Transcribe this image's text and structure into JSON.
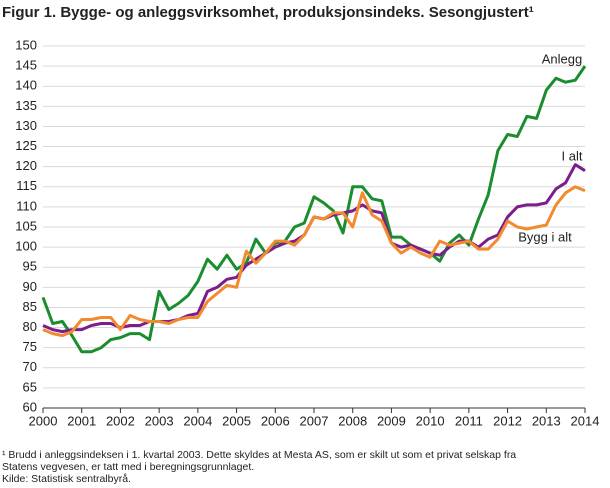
{
  "chart_data": {
    "type": "line",
    "title": "Figur 1. Bygge- og anleggsvirksomhet, produksjonsindeks. Sesongjustert¹",
    "x": [
      2000,
      2000.25,
      2000.5,
      2000.75,
      2001,
      2001.25,
      2001.5,
      2001.75,
      2002,
      2002.25,
      2002.5,
      2002.75,
      2003,
      2003.25,
      2003.5,
      2003.75,
      2004,
      2004.25,
      2004.5,
      2004.75,
      2005,
      2005.25,
      2005.5,
      2005.75,
      2006,
      2006.25,
      2006.5,
      2006.75,
      2007,
      2007.25,
      2007.5,
      2007.75,
      2008,
      2008.25,
      2008.5,
      2008.75,
      2009,
      2009.25,
      2009.5,
      2009.75,
      2010,
      2010.25,
      2010.5,
      2010.75,
      2011,
      2011.25,
      2011.5,
      2011.75,
      2012,
      2012.25,
      2012.5,
      2012.75,
      2013,
      2013.25,
      2013.5,
      2013.75,
      2014
    ],
    "series": [
      {
        "name": "Anlegg",
        "color": "#1a8d2f",
        "values": [
          87.5,
          81,
          81.5,
          78,
          74,
          74,
          75,
          77,
          77.5,
          78.5,
          78.5,
          77,
          89,
          84.5,
          86,
          88,
          91.5,
          97,
          94.5,
          98,
          94.5,
          96,
          102,
          98.5,
          101,
          101.5,
          105,
          106,
          112.5,
          111,
          109,
          103.5,
          115,
          115,
          112,
          111.5,
          102.5,
          102.5,
          100.5,
          99.5,
          98.5,
          96.5,
          101,
          103,
          100.5,
          107,
          113,
          124,
          128,
          127.5,
          132.5,
          132,
          139,
          142,
          141,
          141.5,
          145
        ]
      },
      {
        "name": "I alt",
        "color": "#7b1e8c",
        "values": [
          80.5,
          79.5,
          79,
          79.5,
          79.5,
          80.5,
          81,
          81,
          80,
          80.5,
          80.5,
          81.5,
          81.5,
          81.5,
          82,
          83,
          83.5,
          89,
          90,
          92,
          92.5,
          95.5,
          97,
          98.5,
          100,
          101,
          101.5,
          103,
          107.5,
          107,
          108,
          108.5,
          109,
          110.5,
          109,
          108.5,
          101,
          100,
          100.5,
          99.5,
          98.5,
          98,
          100,
          101.5,
          101.5,
          100,
          102,
          103,
          107.5,
          110,
          110.5,
          110.5,
          111,
          114.5,
          116,
          120.5,
          119
        ]
      },
      {
        "name": "Bygg i alt",
        "color": "#f28a30",
        "values": [
          79.5,
          78.5,
          78,
          79,
          82,
          82,
          82.5,
          82.5,
          79.5,
          83,
          82,
          81.5,
          81.5,
          81,
          82,
          82.5,
          82.5,
          86.5,
          88.5,
          90.5,
          90,
          99,
          96,
          98.5,
          101.5,
          101.5,
          100.5,
          103,
          107.5,
          107,
          108.5,
          108.5,
          105,
          113.5,
          108,
          106.5,
          101,
          98.5,
          100,
          98.5,
          97.5,
          101.5,
          100.5,
          101,
          101.5,
          99.5,
          99.5,
          102,
          106.5,
          105,
          104.5,
          105,
          105.5,
          110.5,
          113.5,
          115,
          114
        ]
      }
    ],
    "xlim": [
      2000,
      2014
    ],
    "xticks": [
      2000,
      2001,
      2002,
      2003,
      2004,
      2005,
      2006,
      2007,
      2008,
      2009,
      2010,
      2011,
      2012,
      2013,
      2014
    ],
    "ylim": [
      60,
      150
    ],
    "yticks": [
      60,
      65,
      70,
      75,
      80,
      85,
      90,
      95,
      100,
      105,
      110,
      115,
      120,
      125,
      130,
      135,
      140,
      145,
      150
    ],
    "grid": true,
    "footnotes": [
      "¹ Brudd i anleggsindeksen i 1. kvartal 2003. Dette skyldes at Mesta AS, som er skilt ut som et privat selskap fra",
      "Statens vegvesen, er tatt med i beregningsgrunnlaget.",
      "Kilde: Statistisk sentralbyrå."
    ]
  }
}
